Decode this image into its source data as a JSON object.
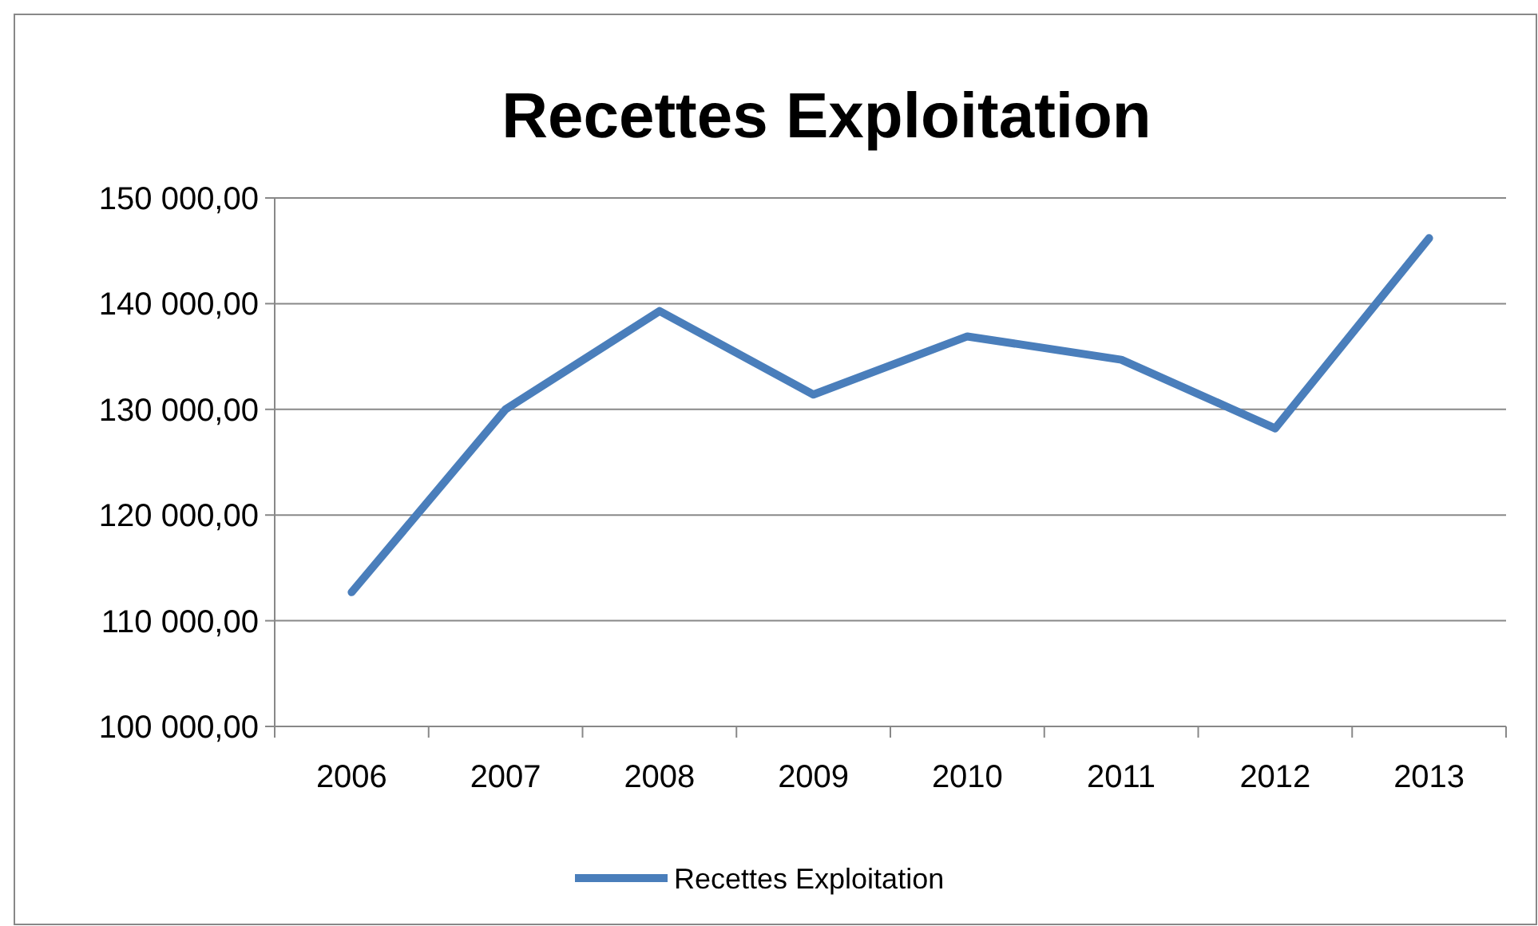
{
  "chart_data": {
    "type": "line",
    "title": "Recettes Exploitation",
    "categories": [
      "2006",
      "2007",
      "2008",
      "2009",
      "2010",
      "2011",
      "2012",
      "2013"
    ],
    "series": [
      {
        "name": "Recettes Exploitation",
        "color": "#4a7ebb",
        "values": [
          112700,
          130000,
          139300,
          131400,
          136900,
          134700,
          128200,
          146200
        ]
      }
    ],
    "ylim": [
      100000,
      150000
    ],
    "yticks": [
      {
        "value": 100000,
        "label": "100 000,00"
      },
      {
        "value": 110000,
        "label": "110 000,00"
      },
      {
        "value": 120000,
        "label": "120 000,00"
      },
      {
        "value": 130000,
        "label": "130 000,00"
      },
      {
        "value": 140000,
        "label": "140 000,00"
      },
      {
        "value": 150000,
        "label": "150 000,00"
      }
    ],
    "grid": "y",
    "legend": "bottom",
    "marker": "none",
    "line_style": "solid"
  }
}
